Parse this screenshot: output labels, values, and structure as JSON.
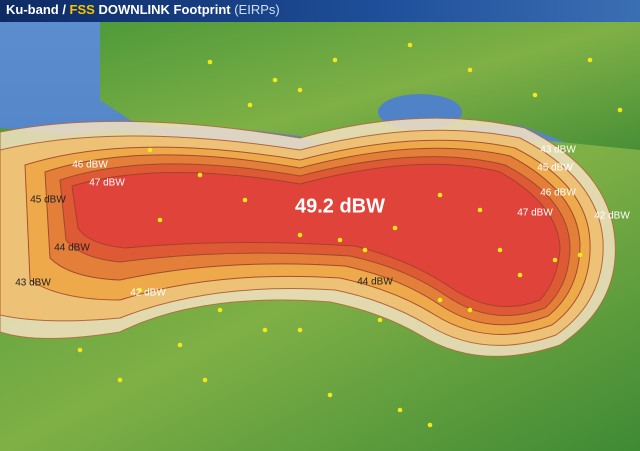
{
  "header": {
    "title_parts": [
      "Ku-band / ",
      "FSS",
      " DOWNLINK Footprint ",
      "(EIRPs)"
    ]
  },
  "contour_labels": [
    "49.2 dBW",
    "47 dBW",
    "46 dBW",
    "45 dBW",
    "44 dBW",
    "43 dBW",
    "42 dBW",
    "44 dBW",
    "43 dBW",
    "45 dBW",
    "46 dBW",
    "47 dBW",
    "42 dBW"
  ]
}
